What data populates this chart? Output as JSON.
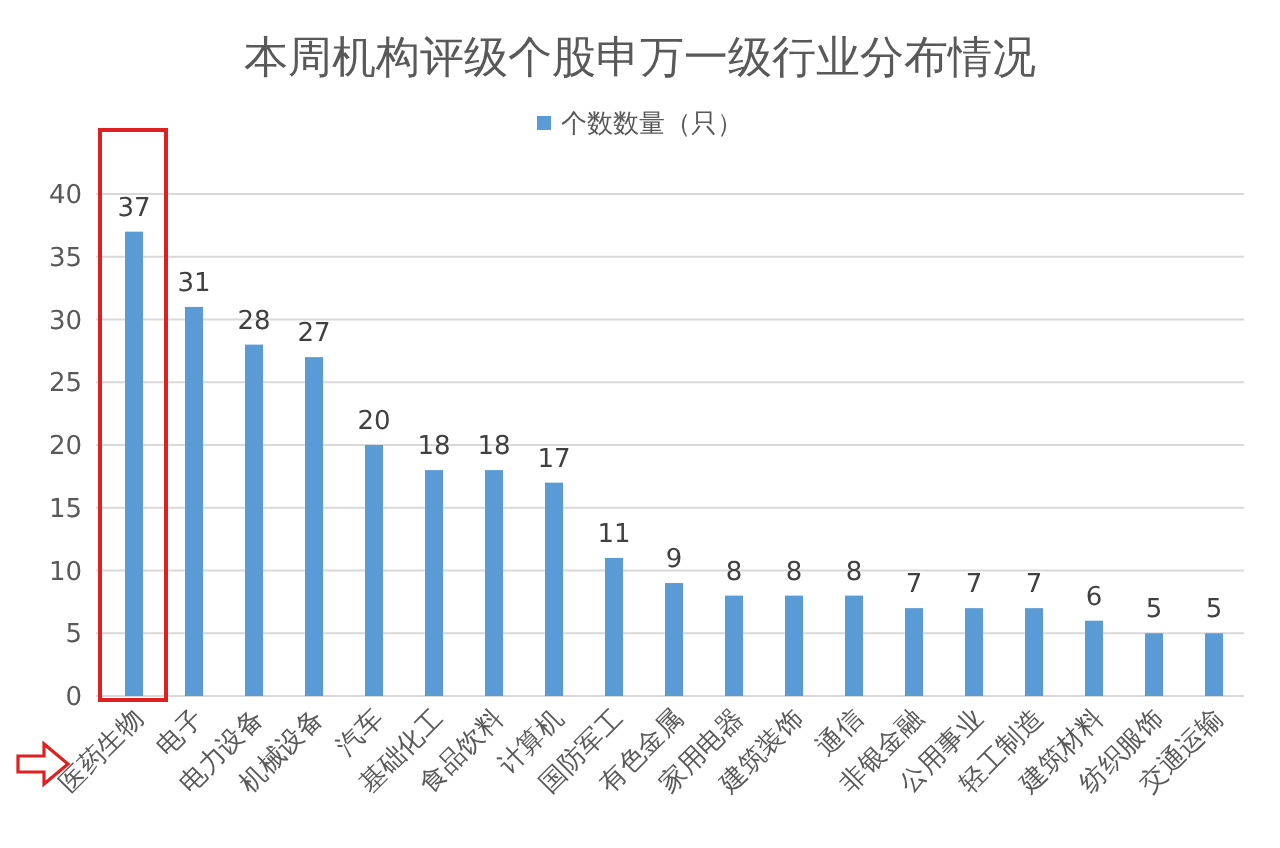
{
  "chart_data": {
    "type": "bar",
    "title": "本周机构评级个股申万一级行业分布情况",
    "categories": [
      "医药生物",
      "电子",
      "电力设备",
      "机械设备",
      "汽车",
      "基础化工",
      "食品饮料",
      "计算机",
      "国防军工",
      "有色金属",
      "家用电器",
      "建筑装饰",
      "通信",
      "非银金融",
      "公用事业",
      "轻工制造",
      "建筑材料",
      "纺织服饰",
      "交通运输"
    ],
    "series": [
      {
        "name": "个数数量（只）",
        "color": "#5b9bd5",
        "values": [
          37,
          31,
          28,
          27,
          20,
          18,
          18,
          17,
          11,
          9,
          8,
          8,
          8,
          7,
          7,
          7,
          6,
          5,
          5
        ]
      }
    ],
    "ylim": [
      0,
      40
    ],
    "yticks": [
      0,
      5,
      10,
      15,
      20,
      25,
      30,
      35,
      40
    ],
    "grid": "y",
    "legend": "top",
    "data_labels": true
  }
}
